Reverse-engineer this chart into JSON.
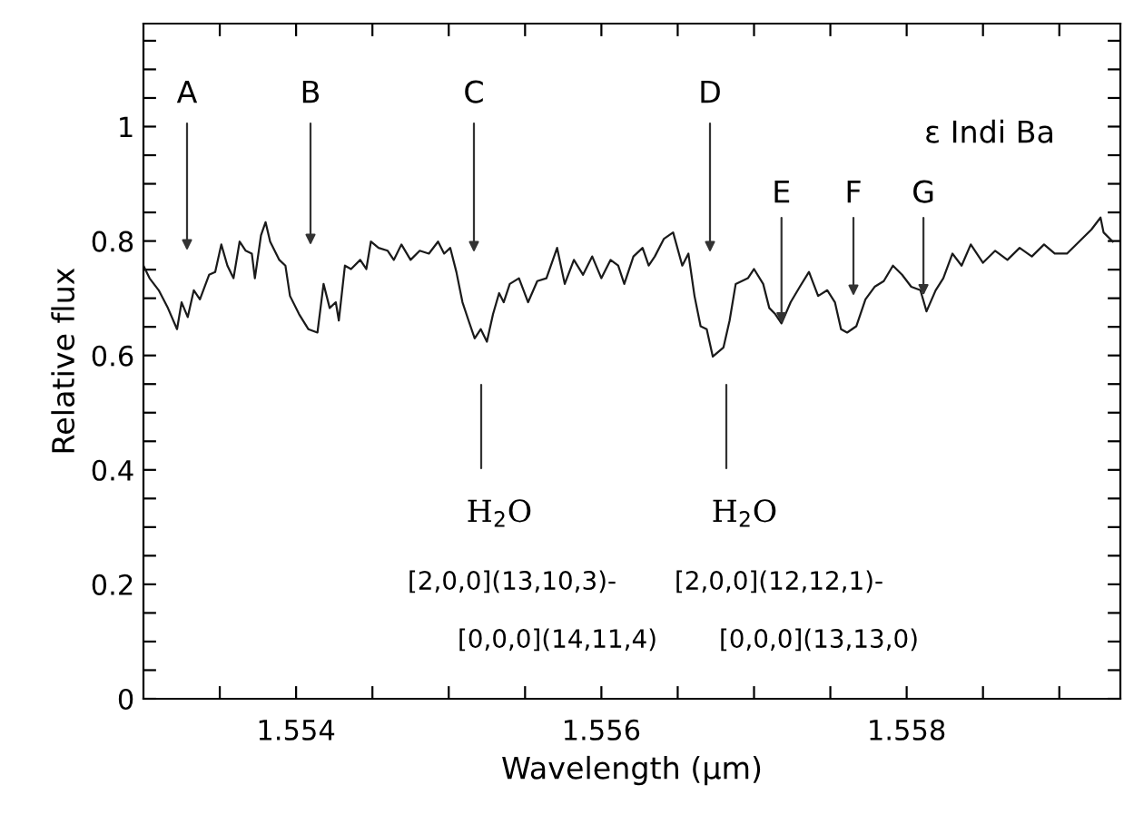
{
  "chart_data": {
    "type": "line",
    "xlabel": "Wavelength (μm)",
    "ylabel": "Relative flux",
    "x": [
      1.553,
      1.55304,
      1.5531,
      1.55316,
      1.55322,
      1.55325,
      1.55329,
      1.55333,
      1.55337,
      1.55343,
      1.55347,
      1.55351,
      1.55355,
      1.55359,
      1.55363,
      1.55367,
      1.55371,
      1.55373,
      1.55377,
      1.5538,
      1.55383,
      1.55389,
      1.55393,
      1.55396,
      1.55402,
      1.55408,
      1.55414,
      1.55418,
      1.55422,
      1.55426,
      1.55428,
      1.55432,
      1.55436,
      1.55442,
      1.55446,
      1.55449,
      1.55454,
      1.5546,
      1.55464,
      1.55469,
      1.55475,
      1.55481,
      1.55487,
      1.55493,
      1.55497,
      1.55501,
      1.55505,
      1.55509,
      1.55513,
      1.55517,
      1.55521,
      1.55525,
      1.55529,
      1.55533,
      1.55536,
      1.5554,
      1.55546,
      1.55552,
      1.55558,
      1.55564,
      1.55571,
      1.55576,
      1.55582,
      1.55588,
      1.55594,
      1.556,
      1.55606,
      1.55611,
      1.55615,
      1.55621,
      1.55627,
      1.55631,
      1.55635,
      1.55641,
      1.55647,
      1.55653,
      1.55657,
      1.55661,
      1.55665,
      1.55669,
      1.55673,
      1.5568,
      1.55684,
      1.55688,
      1.55696,
      1.557,
      1.55706,
      1.5571,
      1.55714,
      1.55718,
      1.55724,
      1.5573,
      1.55736,
      1.55742,
      1.55748,
      1.55753,
      1.55757,
      1.55761,
      1.55767,
      1.55773,
      1.55779,
      1.55785,
      1.55791,
      1.55797,
      1.55803,
      1.55809,
      1.55813,
      1.55819,
      1.55824,
      1.5583,
      1.55836,
      1.55842,
      1.5585,
      1.55858,
      1.55866,
      1.55874,
      1.55882,
      1.5589,
      1.55897,
      1.55905,
      1.55913,
      1.55921,
      1.55927,
      1.55929,
      1.55935
    ],
    "series": [
      {
        "color": "#1a1a1a",
        "values": [
          0.757,
          0.735,
          0.714,
          0.683,
          0.646,
          0.693,
          0.667,
          0.714,
          0.698,
          0.741,
          0.746,
          0.794,
          0.757,
          0.735,
          0.799,
          0.783,
          0.778,
          0.735,
          0.81,
          0.833,
          0.799,
          0.767,
          0.757,
          0.704,
          0.672,
          0.646,
          0.64,
          0.725,
          0.683,
          0.693,
          0.661,
          0.757,
          0.751,
          0.767,
          0.751,
          0.799,
          0.788,
          0.783,
          0.767,
          0.794,
          0.767,
          0.783,
          0.778,
          0.799,
          0.778,
          0.788,
          0.746,
          0.693,
          0.661,
          0.63,
          0.646,
          0.624,
          0.672,
          0.709,
          0.693,
          0.725,
          0.735,
          0.693,
          0.73,
          0.735,
          0.788,
          0.725,
          0.767,
          0.741,
          0.773,
          0.735,
          0.767,
          0.757,
          0.725,
          0.773,
          0.788,
          0.757,
          0.773,
          0.804,
          0.815,
          0.757,
          0.778,
          0.704,
          0.651,
          0.646,
          0.598,
          0.614,
          0.661,
          0.725,
          0.735,
          0.751,
          0.725,
          0.683,
          0.672,
          0.656,
          0.693,
          0.72,
          0.746,
          0.704,
          0.714,
          0.693,
          0.646,
          0.64,
          0.651,
          0.698,
          0.72,
          0.73,
          0.757,
          0.741,
          0.72,
          0.714,
          0.677,
          0.714,
          0.735,
          0.778,
          0.757,
          0.794,
          0.762,
          0.783,
          0.767,
          0.788,
          0.773,
          0.794,
          0.778,
          0.778,
          0.799,
          0.82,
          0.841,
          0.815,
          0.799
        ]
      }
    ],
    "xlim": [
      1.553,
      1.5594
    ],
    "ylim": [
      0,
      1.18
    ],
    "xticks": [
      {
        "value": 1.5535,
        "label": null
      },
      1.554,
      {
        "value": 1.5545,
        "label": null
      },
      {
        "value": 1.555,
        "label": null
      },
      {
        "value": 1.5555,
        "label": null
      },
      1.556,
      {
        "value": 1.5565,
        "label": null
      },
      {
        "value": 1.557,
        "label": null
      },
      {
        "value": 1.5575,
        "label": null
      },
      1.558,
      {
        "value": 1.5585,
        "label": null
      },
      {
        "value": 1.559,
        "label": null
      }
    ],
    "yticks": [
      0,
      {
        "value": 0.05,
        "label": null
      },
      {
        "value": 0.1,
        "label": null
      },
      {
        "value": 0.15,
        "label": null
      },
      0.2,
      {
        "value": 0.25,
        "label": null
      },
      {
        "value": 0.3,
        "label": null
      },
      {
        "value": 0.35,
        "label": null
      },
      0.4,
      {
        "value": 0.45,
        "label": null
      },
      {
        "value": 0.5,
        "label": null
      },
      {
        "value": 0.55,
        "label": null
      },
      0.6,
      {
        "value": 0.65,
        "label": null
      },
      {
        "value": 0.7,
        "label": null
      },
      {
        "value": 0.75,
        "label": null
      },
      0.8,
      {
        "value": 0.85,
        "label": null
      },
      {
        "value": 0.9,
        "label": null
      },
      {
        "value": 0.95,
        "label": null
      },
      1,
      {
        "value": 1.05,
        "label": null
      },
      {
        "value": 1.1,
        "label": null
      },
      {
        "value": 1.15,
        "label": null
      }
    ],
    "grid": false,
    "legend": false,
    "marker": "none",
    "line_style": "solid",
    "annotations": [
      "ε Indi Ba",
      "A",
      "B",
      "C",
      "D",
      {
        "text": "E",
        "x": 1.55718,
        "y": 0.656
      },
      "F",
      {
        "text": "G",
        "x": 1.55811,
        "y": 0.705
      },
      "H$_{2}$O",
      "[2,0,0](13,10,3)-",
      "[0,0,0](14,11,4)",
      "H$_{2}$O",
      "[2,0,0](12,12,1)-",
      "[0,0,0](13,13,0)"
    ]
  }
}
